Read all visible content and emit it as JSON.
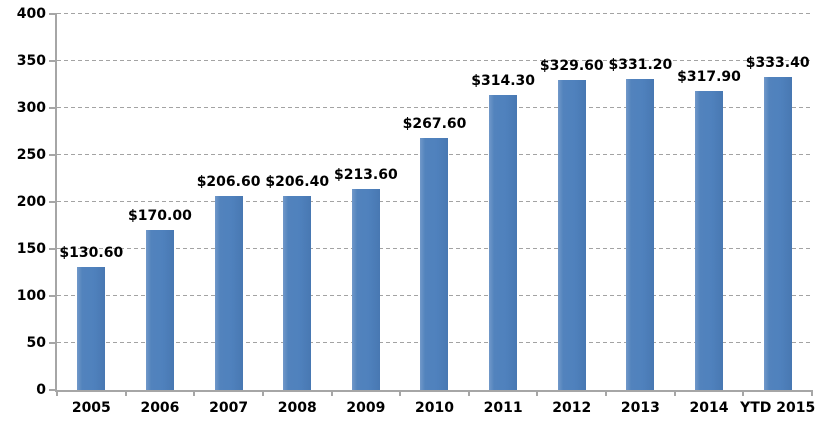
{
  "chart_data": {
    "type": "bar",
    "title": "",
    "xlabel": "",
    "ylabel": "",
    "categories": [
      "2005",
      "2006",
      "2007",
      "2008",
      "2009",
      "2010",
      "2011",
      "2012",
      "2013",
      "2014",
      "YTD 2015"
    ],
    "values": [
      130.6,
      170.0,
      206.6,
      206.4,
      213.6,
      267.6,
      314.3,
      329.6,
      331.2,
      317.9,
      333.4
    ],
    "value_labels": [
      "$130.60",
      "$170.00",
      "$206.60",
      "$206.40",
      "$213.60",
      "$267.60",
      "$314.30",
      "$329.60",
      "$331.20",
      "$317.90",
      "$333.40"
    ],
    "ylim": [
      0,
      400
    ],
    "ytick_step": 50,
    "yticks": [
      0,
      50,
      100,
      150,
      200,
      250,
      300,
      350,
      400
    ],
    "grid": "horizontal-dashed",
    "legend": "none",
    "colors": {
      "bar_fill": "#4f81bd",
      "gridline": "#a3a3a3",
      "axis_line": "#a6a6a6",
      "label_text": "#000000",
      "background": "#ffffff"
    }
  }
}
